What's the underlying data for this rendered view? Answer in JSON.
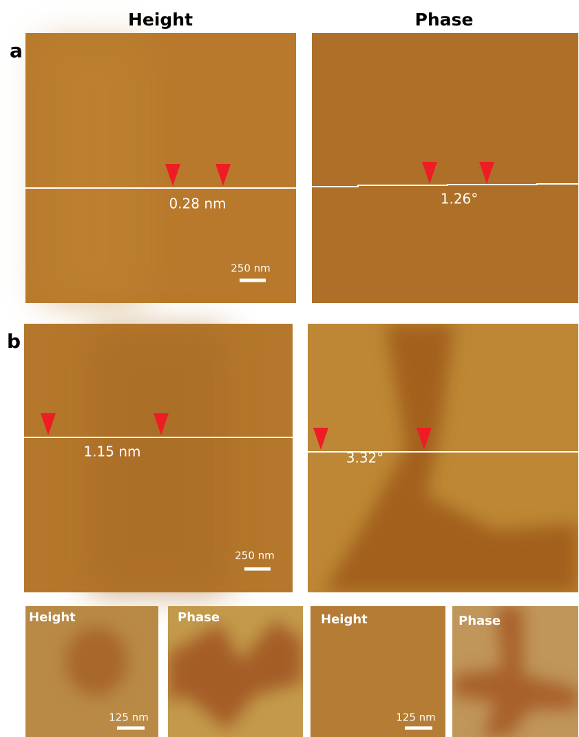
{
  "headers": {
    "height": "Height",
    "phase": "Phase"
  },
  "panels": {
    "a": {
      "label": "a",
      "height_profile": "0.28 nm",
      "phase_profile": "1.26°",
      "scale_bar": "250 nm"
    },
    "b": {
      "label": "b",
      "height_profile": "1.15 nm",
      "phase_profile": "3.32°",
      "scale_bar": "250 nm"
    },
    "insets": [
      {
        "label": "Height",
        "scale_bar": "125 nm"
      },
      {
        "label": "Phase"
      },
      {
        "label": "Height",
        "scale_bar": "125 nm"
      },
      {
        "label": "Phase"
      }
    ]
  }
}
